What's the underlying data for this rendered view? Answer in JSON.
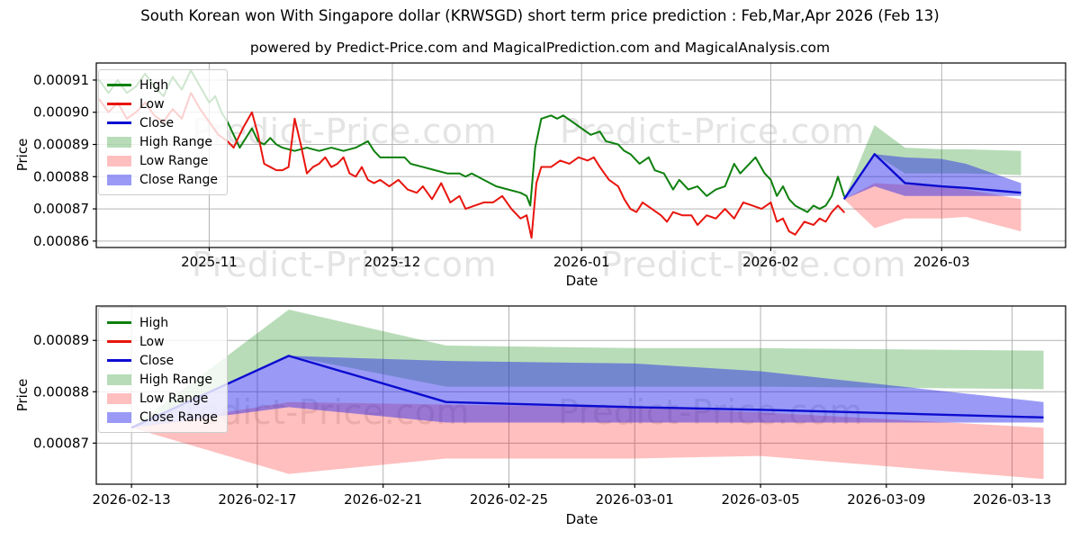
{
  "title": "South Korean won With Singapore dollar (KRWSGD) short term price prediction : Feb,Mar,Apr 2026 (Feb 13)",
  "subtitle": "powered by Predict-Price.com and MagicalPrediction.com and MagicalAnalysis.com",
  "watermark_text": "Predict-Price.com",
  "colors": {
    "high_line": "#0e800e",
    "low_line": "#e8150e",
    "close_line": "#0c0cd0",
    "high_range_fill": "rgba(0,128,0,0.28)",
    "low_range_fill": "rgba(255,0,0,0.25)",
    "close_range_fill": "rgba(30,30,235,0.45)",
    "grid": "#b3b3b3",
    "spine": "#000000",
    "watermark": "#e4e4e4"
  },
  "legend_items": [
    {
      "label": "High",
      "swatch": "line",
      "color_key": "high_line"
    },
    {
      "label": "Low",
      "swatch": "line",
      "color_key": "low_line"
    },
    {
      "label": "Close",
      "swatch": "line",
      "color_key": "close_line"
    },
    {
      "label": "High Range",
      "swatch": "fill",
      "color_key": "high_range_fill"
    },
    {
      "label": "Low Range",
      "swatch": "fill",
      "color_key": "low_range_fill"
    },
    {
      "label": "Close Range",
      "swatch": "fill",
      "color_key": "close_range_fill"
    }
  ],
  "prediction": {
    "dates": [
      "2026-02-13",
      "2026-02-18",
      "2026-02-23",
      "2026-03-01",
      "2026-03-05",
      "2026-03-14"
    ],
    "day_offsets": [
      0,
      5,
      10,
      16,
      20,
      29
    ],
    "close": [
      0.000873,
      0.000887,
      0.000878,
      0.000877,
      0.0008765,
      0.000875
    ],
    "high_range_upper": [
      0.000873,
      0.000896,
      0.000889,
      0.0008885,
      0.0008885,
      0.000888
    ],
    "high_range_lower": [
      0.000873,
      0.000887,
      0.000881,
      0.000881,
      0.000881,
      0.0008805
    ],
    "low_range_upper": [
      0.000873,
      0.000878,
      0.0008775,
      0.000877,
      0.000876,
      0.000873
    ],
    "low_range_lower": [
      0.000873,
      0.000864,
      0.000867,
      0.000867,
      0.0008675,
      0.000863
    ],
    "close_range_upper": [
      0.000873,
      0.000887,
      0.000886,
      0.0008855,
      0.000884,
      0.000878
    ],
    "close_range_lower": [
      0.000873,
      0.000877,
      0.000874,
      0.000874,
      0.000874,
      0.000874
    ]
  },
  "chart_data": [
    {
      "type": "line",
      "name": "price-history-with-forecast",
      "xlabel": "Date",
      "ylabel": "Price",
      "x_unit_days_origin": "first plotted day (2025-10-14 approx.)",
      "xticks": [
        {
          "d": 18,
          "label": "2025-11"
        },
        {
          "d": 48,
          "label": "2025-12"
        },
        {
          "d": 79,
          "label": "2026-01"
        },
        {
          "d": 110,
          "label": "2026-02"
        },
        {
          "d": 138,
          "label": "2026-03"
        }
      ],
      "yticks": [
        {
          "v": 0.00086,
          "label": "0.00086"
        },
        {
          "v": 0.00087,
          "label": "0.00087"
        },
        {
          "v": 0.00088,
          "label": "0.00088"
        },
        {
          "v": 0.00089,
          "label": "0.00089"
        },
        {
          "v": 0.0009,
          "label": "0.00090"
        },
        {
          "v": 0.00091,
          "label": "0.00091"
        }
      ],
      "ylim": [
        0.000858,
        0.0009153
      ],
      "xlim": [
        -0.5,
        158.3
      ],
      "grid": true,
      "legend_position": "upper-left",
      "forecast_day_shift": 122,
      "series": {
        "high": [
          [
            0,
            0.00091
          ],
          [
            1.5,
            0.000906
          ],
          [
            3,
            0.00091
          ],
          [
            4.5,
            0.000906
          ],
          [
            6,
            0.000908
          ],
          [
            7.5,
            0.000912
          ],
          [
            9,
            0.000908
          ],
          [
            10.5,
            0.000905
          ],
          [
            12,
            0.000911
          ],
          [
            13.5,
            0.000907
          ],
          [
            15,
            0.000913
          ],
          [
            16.5,
            0.000908
          ],
          [
            18,
            0.000903
          ],
          [
            19,
            0.000905
          ],
          [
            20,
            0.0009
          ],
          [
            21,
            0.000897
          ],
          [
            22,
            0.000893
          ],
          [
            23,
            0.000889
          ],
          [
            24,
            0.000892
          ],
          [
            25,
            0.000895
          ],
          [
            26,
            0.000891
          ],
          [
            27,
            0.00089
          ],
          [
            28,
            0.000892
          ],
          [
            29,
            0.00089
          ],
          [
            30,
            0.000889
          ],
          [
            32,
            0.000888
          ],
          [
            34,
            0.000889
          ],
          [
            36,
            0.000888
          ],
          [
            38,
            0.000889
          ],
          [
            40,
            0.000888
          ],
          [
            42,
            0.000889
          ],
          [
            44,
            0.000891
          ],
          [
            45,
            0.000888
          ],
          [
            46,
            0.000886
          ],
          [
            48,
            0.000886
          ],
          [
            50,
            0.000886
          ],
          [
            51,
            0.000884
          ],
          [
            53,
            0.000883
          ],
          [
            55,
            0.000882
          ],
          [
            57,
            0.000881
          ],
          [
            59,
            0.000881
          ],
          [
            60,
            0.00088
          ],
          [
            61,
            0.000881
          ],
          [
            63,
            0.000879
          ],
          [
            65,
            0.000877
          ],
          [
            67,
            0.000876
          ],
          [
            69,
            0.000875
          ],
          [
            70,
            0.000874
          ],
          [
            70.6,
            0.000871
          ],
          [
            71.4,
            0.000889
          ],
          [
            72.4,
            0.000898
          ],
          [
            74,
            0.000899
          ],
          [
            75,
            0.000898
          ],
          [
            76,
            0.000899
          ],
          [
            77.5,
            0.000897
          ],
          [
            79,
            0.000895
          ],
          [
            80.5,
            0.000893
          ],
          [
            82,
            0.000894
          ],
          [
            83,
            0.000891
          ],
          [
            85,
            0.00089
          ],
          [
            86,
            0.000888
          ],
          [
            87,
            0.000887
          ],
          [
            88.5,
            0.000884
          ],
          [
            90,
            0.000886
          ],
          [
            91,
            0.000882
          ],
          [
            92.5,
            0.000881
          ],
          [
            94,
            0.000876
          ],
          [
            95,
            0.000879
          ],
          [
            96.5,
            0.000876
          ],
          [
            98,
            0.000877
          ],
          [
            99.5,
            0.000874
          ],
          [
            101,
            0.000876
          ],
          [
            102.5,
            0.000877
          ],
          [
            104,
            0.000884
          ],
          [
            105,
            0.000881
          ],
          [
            106.5,
            0.000884
          ],
          [
            107.5,
            0.000886
          ],
          [
            109,
            0.000881
          ],
          [
            110,
            0.000879
          ],
          [
            111,
            0.000874
          ],
          [
            112,
            0.000877
          ],
          [
            113,
            0.000873
          ],
          [
            114,
            0.000871
          ],
          [
            115,
            0.00087
          ],
          [
            116,
            0.000869
          ],
          [
            117,
            0.000871
          ],
          [
            118,
            0.00087
          ],
          [
            119,
            0.000871
          ],
          [
            120,
            0.000874
          ],
          [
            121,
            0.00088
          ],
          [
            122,
            0.000874
          ]
        ],
        "low": [
          [
            0,
            0.000904
          ],
          [
            1.5,
            0.0009
          ],
          [
            3,
            0.000903
          ],
          [
            4.5,
            0.000898
          ],
          [
            6,
            0.0009
          ],
          [
            7.5,
            0.000903
          ],
          [
            9,
            0.000899
          ],
          [
            10.5,
            0.000897
          ],
          [
            12,
            0.000901
          ],
          [
            13.5,
            0.000898
          ],
          [
            15,
            0.000906
          ],
          [
            16.5,
            0.000901
          ],
          [
            18,
            0.000897
          ],
          [
            19.5,
            0.000893
          ],
          [
            21,
            0.000891
          ],
          [
            22,
            0.000889
          ],
          [
            23.5,
            0.000895
          ],
          [
            25,
            0.0009
          ],
          [
            26,
            0.000893
          ],
          [
            27,
            0.000884
          ],
          [
            28,
            0.000883
          ],
          [
            29,
            0.000882
          ],
          [
            30,
            0.000882
          ],
          [
            31,
            0.000883
          ],
          [
            32,
            0.000898
          ],
          [
            33,
            0.00089
          ],
          [
            34,
            0.000881
          ],
          [
            35,
            0.000883
          ],
          [
            36,
            0.000884
          ],
          [
            37,
            0.000886
          ],
          [
            38,
            0.000883
          ],
          [
            39,
            0.000884
          ],
          [
            40,
            0.000886
          ],
          [
            41,
            0.000881
          ],
          [
            42,
            0.00088
          ],
          [
            43,
            0.000883
          ],
          [
            44,
            0.000879
          ],
          [
            45,
            0.000878
          ],
          [
            46,
            0.000879
          ],
          [
            47.5,
            0.000877
          ],
          [
            49,
            0.000879
          ],
          [
            50.5,
            0.000876
          ],
          [
            52,
            0.000875
          ],
          [
            53,
            0.000877
          ],
          [
            54.5,
            0.000873
          ],
          [
            56,
            0.000878
          ],
          [
            57.5,
            0.000872
          ],
          [
            59,
            0.000874
          ],
          [
            60,
            0.00087
          ],
          [
            61.5,
            0.000871
          ],
          [
            63,
            0.000872
          ],
          [
            64.5,
            0.000872
          ],
          [
            66,
            0.000874
          ],
          [
            67.5,
            0.00087
          ],
          [
            69,
            0.000867
          ],
          [
            70,
            0.000868
          ],
          [
            70.8,
            0.000861
          ],
          [
            71.6,
            0.000878
          ],
          [
            72.4,
            0.000883
          ],
          [
            74,
            0.000883
          ],
          [
            75.5,
            0.000885
          ],
          [
            77,
            0.000884
          ],
          [
            78.5,
            0.000886
          ],
          [
            80,
            0.000885
          ],
          [
            81,
            0.000886
          ],
          [
            82,
            0.000883
          ],
          [
            83.5,
            0.000879
          ],
          [
            85,
            0.000877
          ],
          [
            86,
            0.000873
          ],
          [
            87,
            0.00087
          ],
          [
            88,
            0.000869
          ],
          [
            89,
            0.000872
          ],
          [
            90.5,
            0.00087
          ],
          [
            92,
            0.000868
          ],
          [
            93,
            0.000866
          ],
          [
            94,
            0.000869
          ],
          [
            95.5,
            0.000868
          ],
          [
            97,
            0.000868
          ],
          [
            98,
            0.000865
          ],
          [
            99.5,
            0.000868
          ],
          [
            101,
            0.000867
          ],
          [
            102.5,
            0.00087
          ],
          [
            104,
            0.000867
          ],
          [
            105.5,
            0.000872
          ],
          [
            107,
            0.000871
          ],
          [
            108.5,
            0.00087
          ],
          [
            110,
            0.000872
          ],
          [
            111,
            0.000866
          ],
          [
            112,
            0.000867
          ],
          [
            113,
            0.000863
          ],
          [
            114,
            0.000862
          ],
          [
            115.5,
            0.000866
          ],
          [
            117,
            0.000865
          ],
          [
            118,
            0.000867
          ],
          [
            119,
            0.000866
          ],
          [
            120,
            0.000869
          ],
          [
            121,
            0.000871
          ],
          [
            122,
            0.000869
          ]
        ]
      }
    },
    {
      "type": "line",
      "name": "forecast-zoom",
      "xlabel": "Date",
      "ylabel": "Price",
      "xticks": [
        {
          "d": 0,
          "label": "2026-02-13"
        },
        {
          "d": 4,
          "label": "2026-02-17"
        },
        {
          "d": 8,
          "label": "2026-02-21"
        },
        {
          "d": 12,
          "label": "2026-02-25"
        },
        {
          "d": 16,
          "label": "2026-03-01"
        },
        {
          "d": 20,
          "label": "2026-03-05"
        },
        {
          "d": 24,
          "label": "2026-03-09"
        },
        {
          "d": 28,
          "label": "2026-03-13"
        }
      ],
      "yticks": [
        {
          "v": 0.00087,
          "label": "0.00087"
        },
        {
          "v": 0.00088,
          "label": "0.00088"
        },
        {
          "v": 0.00089,
          "label": "0.00089"
        }
      ],
      "ylim": [
        0.000862,
        0.0008967
      ],
      "xlim": [
        -1.12,
        29.7
      ],
      "grid": true,
      "legend_position": "upper-left",
      "forecast_day_shift": 0
    }
  ]
}
